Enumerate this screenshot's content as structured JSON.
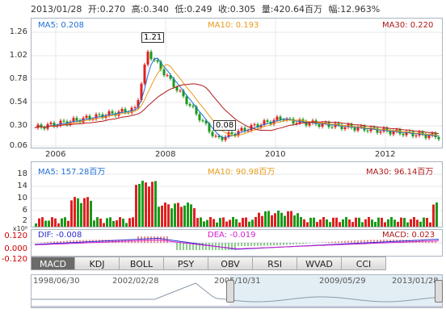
{
  "quote": {
    "date": "2013/01/28",
    "open_label": "开:",
    "open": "0.270",
    "high_label": "高:",
    "high": "0.340",
    "low_label": "低:",
    "low": "0.249",
    "close_label": "收:",
    "close": "0.305",
    "volume_label": "量:",
    "volume": "420.64百万",
    "amp_label": "幅:",
    "amp": "12.963%"
  },
  "price_panel": {
    "ma5": "MA5: 0.208",
    "ma10": "MA10: 0.193",
    "ma30": "MA30: 0.220",
    "y_ticks": [
      "1.26",
      "1.02",
      "0.78",
      "0.54",
      "0.30",
      "0.06"
    ],
    "x_ticks": [
      "2006",
      "2008",
      "2010",
      "2012"
    ],
    "high_marker": "1.21",
    "low_marker": "0.08"
  },
  "volume_panel": {
    "ma5": "MA5: 157.28百万",
    "ma10": "MA10: 90.98百万",
    "ma30": "MA30: 96.14百万",
    "y_ticks": [
      "18",
      "14",
      "10",
      "6",
      "2"
    ],
    "unit": "x10⁸"
  },
  "macd_panel": {
    "dif": "DIF: -0.008",
    "dea": "DEA: -0.019",
    "macd": "MACD: 0.023",
    "y_ticks": [
      "0.120",
      "0.000",
      "-0.120"
    ]
  },
  "tabs": [
    "MACD",
    "KDJ",
    "BOLL",
    "PSY",
    "OBV",
    "RSI",
    "WVAD",
    "CCI"
  ],
  "navigator": {
    "dates": [
      "1998/06/30",
      "2002/02/28",
      "2005/10/31",
      "2009/05/29",
      "2013/01/28"
    ]
  },
  "colors": {
    "up": "#e02020",
    "down": "#1a9a1a",
    "ma5": "#1f6fd6",
    "ma10": "#e89a1a",
    "ma30": "#b01818",
    "dif": "#2a2ad0",
    "dea": "#d020d0",
    "axis": "#cc0000"
  }
}
